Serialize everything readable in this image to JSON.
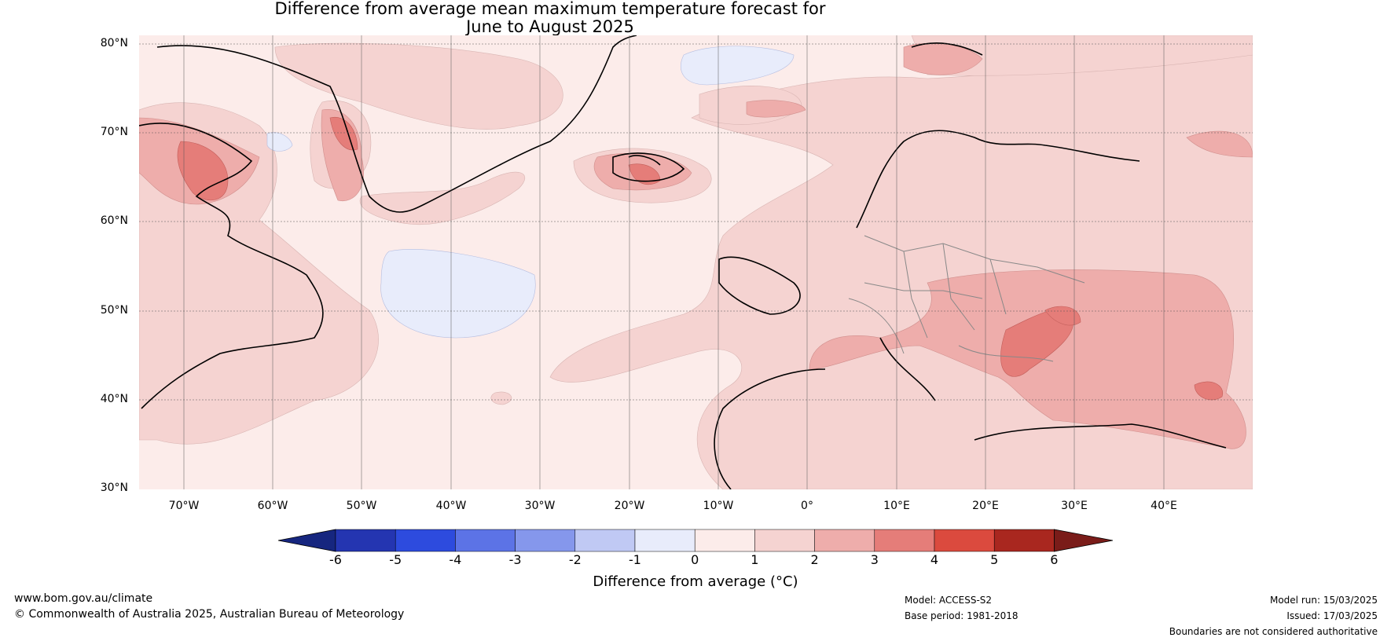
{
  "title": {
    "line1": "Difference from average mean maximum temperature forecast for",
    "line2": "June to August 2025"
  },
  "map": {
    "lat_labels": [
      "80°N",
      "70°N",
      "60°N",
      "50°N",
      "40°N",
      "30°N"
    ],
    "lon_labels": [
      "70°W",
      "60°W",
      "50°W",
      "40°W",
      "30°W",
      "20°W",
      "10°W",
      "0°",
      "10°E",
      "20°E",
      "30°E",
      "40°E"
    ],
    "extent": {
      "lon_min": -75,
      "lon_max": 50,
      "lat_min": 30,
      "lat_max": 81
    }
  },
  "colorbar": {
    "ticks": [
      "-6",
      "-5",
      "-4",
      "-3",
      "-2",
      "-1",
      "0",
      "1",
      "2",
      "3",
      "4",
      "5",
      "6"
    ],
    "colors": [
      "#16267f",
      "#2435b1",
      "#2d4bde",
      "#5c73e6",
      "#8597ec",
      "#c0c9f4",
      "#e8ecfb",
      "#fcecea",
      "#f5d3d1",
      "#eeadab",
      "#e57d79",
      "#db4a3e",
      "#a9271f",
      "#7a1c19"
    ],
    "label": "Difference from average (°C)"
  },
  "footer": {
    "website": "www.bom.gov.au/climate",
    "copyright": "© Commonwealth of Australia 2025, Australian Bureau of Meteorology",
    "model": "Model: ACCESS-S2",
    "base_period": "Base period: 1981-2018",
    "model_run": "Model run: 15/03/2025",
    "issued": "Issued: 17/03/2025",
    "boundaries": "Boundaries are not considered authoritative"
  }
}
